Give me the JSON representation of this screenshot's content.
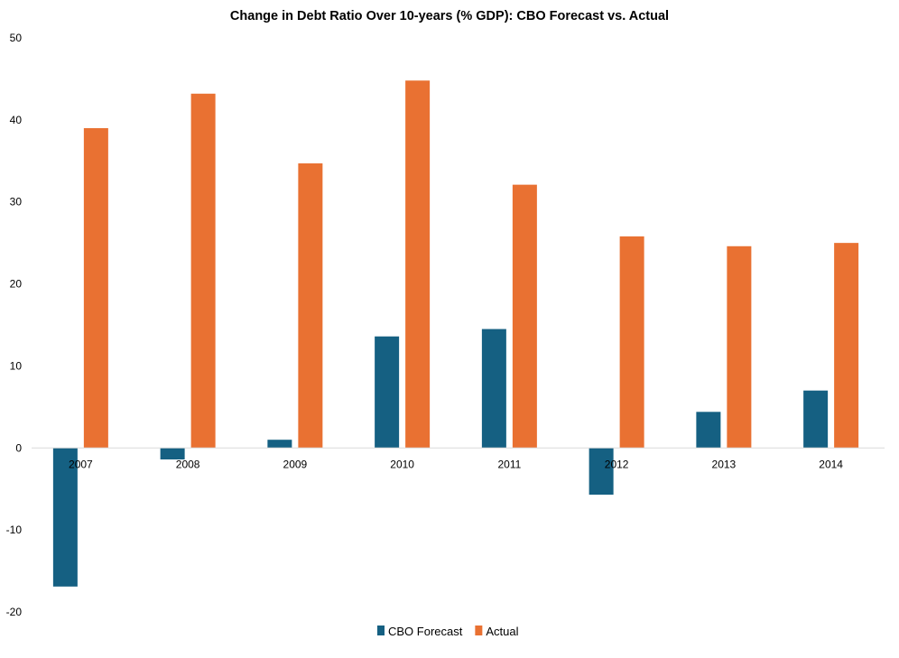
{
  "chart_data": {
    "type": "bar",
    "title": "Change in Debt Ratio Over 10-years (% GDP): CBO Forecast vs. Actual",
    "xlabel": "",
    "ylabel": "",
    "ylim": [
      -20,
      50
    ],
    "yticks": [
      50,
      40,
      30,
      20,
      10,
      0,
      -10,
      -20
    ],
    "grid": false,
    "legend_position": "bottom",
    "categories": [
      "2007",
      "2008",
      "2009",
      "2010",
      "2011",
      "2012",
      "2013",
      "2014"
    ],
    "series": [
      {
        "name": "CBO Forecast",
        "color": "#156082",
        "values": [
          -16.9,
          -1.4,
          1.0,
          13.6,
          14.5,
          -5.7,
          4.4,
          7.0
        ]
      },
      {
        "name": "Actual",
        "color": "#E97132",
        "values": [
          39.0,
          43.2,
          34.7,
          44.8,
          32.1,
          25.8,
          24.6,
          25.0
        ]
      }
    ]
  }
}
